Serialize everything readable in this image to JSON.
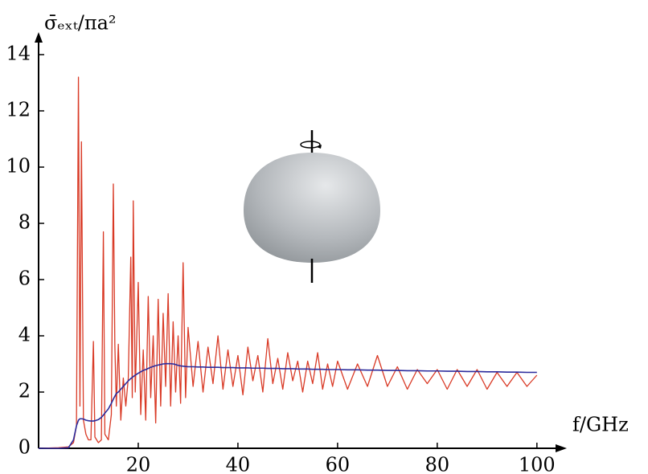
{
  "chart_data": {
    "type": "line",
    "y_label": "σ̄ₑₓₜ/πa²",
    "x_label": "f/GHz",
    "xlim": [
      0,
      106
    ],
    "ylim": [
      0,
      14.8
    ],
    "xticks": [
      20,
      40,
      60,
      80,
      100
    ],
    "yticks": [
      0,
      2,
      4,
      6,
      8,
      10,
      12,
      14
    ],
    "x": [
      0,
      4,
      6,
      7,
      7.6,
      8.0,
      8.3,
      8.6,
      9.0,
      9.5,
      10,
      10.5,
      11,
      11.3,
      12,
      12.6,
      13,
      13.3,
      14,
      14.6,
      15,
      15.3,
      15.6,
      16,
      16.5,
      17,
      17.5,
      18,
      18.5,
      18.8,
      19,
      19.4,
      20,
      20.5,
      21,
      21.5,
      22,
      22.5,
      23,
      23.5,
      24,
      24.5,
      25,
      25.5,
      26,
      26.5,
      27,
      27.5,
      28,
      28.5,
      29,
      29.5,
      30,
      31,
      32,
      33,
      34,
      35,
      36,
      37,
      38,
      39,
      40,
      41,
      42,
      43,
      44,
      45,
      46,
      47,
      48,
      49,
      50,
      51,
      52,
      53,
      54,
      55,
      56,
      57,
      58,
      59,
      60,
      62,
      64,
      66,
      68,
      70,
      72,
      74,
      76,
      78,
      80,
      82,
      84,
      86,
      88,
      90,
      92,
      94,
      96,
      98,
      100
    ],
    "series": [
      {
        "color": "#d93a26",
        "values": [
          0,
          0.02,
          0.05,
          0.2,
          0.8,
          13.2,
          1.5,
          10.9,
          1.0,
          0.5,
          0.3,
          0.3,
          3.8,
          0.4,
          0.2,
          0.3,
          7.7,
          0.5,
          0.3,
          1.2,
          9.4,
          3.7,
          1.5,
          3.7,
          1.0,
          2.5,
          1.5,
          2.5,
          6.8,
          1.8,
          8.8,
          2.0,
          5.9,
          1.2,
          3.5,
          1.0,
          5.4,
          1.8,
          4.0,
          0.9,
          5.3,
          1.5,
          4.8,
          2.2,
          5.5,
          1.5,
          4.5,
          2.0,
          4.0,
          1.6,
          6.6,
          1.8,
          4.3,
          2.2,
          3.8,
          2.0,
          3.6,
          2.3,
          4.0,
          2.1,
          3.5,
          2.2,
          3.3,
          1.9,
          3.6,
          2.4,
          3.3,
          2.0,
          3.9,
          2.3,
          3.2,
          2.1,
          3.4,
          2.4,
          3.1,
          2.0,
          3.1,
          2.3,
          3.4,
          2.1,
          3.0,
          2.2,
          3.1,
          2.1,
          3.0,
          2.2,
          3.3,
          2.2,
          2.9,
          2.1,
          2.8,
          2.3,
          2.8,
          2.1,
          2.8,
          2.2,
          2.8,
          2.1,
          2.7,
          2.2,
          2.7,
          2.2,
          2.6
        ]
      },
      {
        "color": "#2b2b9c",
        "values": [
          0,
          0,
          0.02,
          0.3,
          0.8,
          1.0,
          1.05,
          1.05,
          1.04,
          1.0,
          0.98,
          0.97,
          0.97,
          0.98,
          1.02,
          1.1,
          1.18,
          1.25,
          1.4,
          1.6,
          1.75,
          1.85,
          1.95,
          2.0,
          2.1,
          2.2,
          2.3,
          2.4,
          2.48,
          2.52,
          2.55,
          2.6,
          2.67,
          2.72,
          2.77,
          2.8,
          2.84,
          2.88,
          2.91,
          2.94,
          2.96,
          2.98,
          3.0,
          3.01,
          3.01,
          3.01,
          3.0,
          2.98,
          2.95,
          2.93,
          2.92,
          2.91,
          2.9,
          2.9,
          2.89,
          2.89,
          2.88,
          2.88,
          2.88,
          2.87,
          2.87,
          2.87,
          2.86,
          2.86,
          2.86,
          2.85,
          2.85,
          2.85,
          2.84,
          2.84,
          2.84,
          2.83,
          2.83,
          2.83,
          2.82,
          2.82,
          2.82,
          2.81,
          2.81,
          2.81,
          2.8,
          2.8,
          2.8,
          2.79,
          2.79,
          2.78,
          2.78,
          2.77,
          2.77,
          2.76,
          2.76,
          2.75,
          2.75,
          2.74,
          2.74,
          2.73,
          2.73,
          2.72,
          2.72,
          2.71,
          2.71,
          2.7,
          2.7
        ]
      }
    ]
  }
}
